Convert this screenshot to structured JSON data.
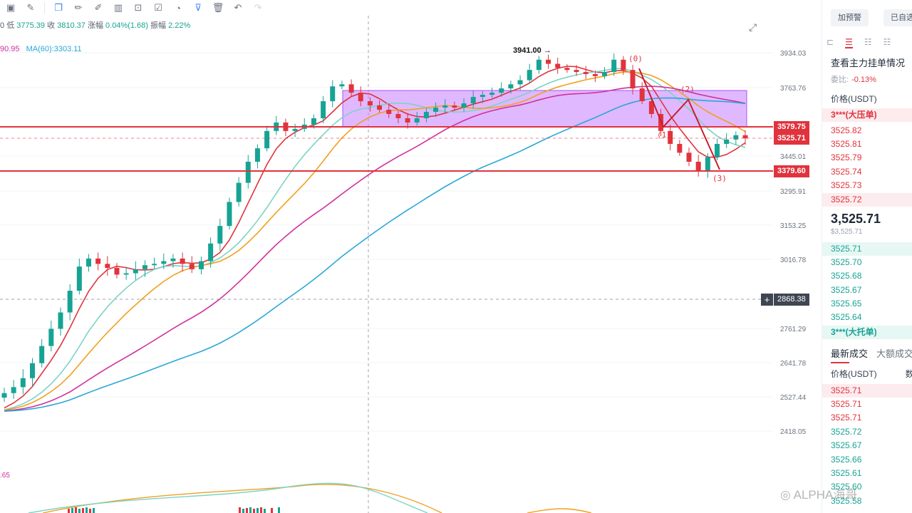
{
  "toolbar": {
    "icons": [
      "layers-icon",
      "brush-icon",
      "copy-icon",
      "pencil-icon",
      "paint-icon",
      "pattern-icon",
      "lock-icon",
      "note-icon",
      "measure-icon",
      "filter-icon",
      "trash-icon",
      "undo-icon",
      "redo-icon"
    ]
  },
  "ohlc": {
    "prefix": "0",
    "low_label": "低",
    "low": "3775.39",
    "close_label": "收",
    "close": "3810.37",
    "change_label": "涨幅",
    "change": "0.04%(1.68)",
    "amp_label": "振幅",
    "amp": "2.22%"
  },
  "ma": {
    "ma1_text": "90.95",
    "ma2_text": "MA(60):3303.11"
  },
  "sub_indicator_value": ".65",
  "y_axis_labels": [
    "3934.03",
    "3763.76",
    "3445.01",
    "3295.91",
    "3153.25",
    "3016.78",
    "2761.29",
    "2641.78",
    "2527.44",
    "2418.05"
  ],
  "price_tags": {
    "upper": "3579.75",
    "current": "3525.71",
    "lower": "3379.60",
    "crosshair": "2868.38"
  },
  "annotations": {
    "high": "3941.00",
    "wave0": "(0)",
    "wave1": "(1)",
    "wave2": "(2)",
    "wave3": "(3)"
  },
  "panel": {
    "btn_alert": "加预警",
    "btn_selected": "已自选",
    "title": "查看主力挂单情况",
    "ratio_label": "委比:",
    "ratio_value": "-0.13%",
    "price_header": "价格(USDT)",
    "ask_big": "3***(大压单)",
    "asks": [
      "3525.82",
      "3525.81",
      "3525.79",
      "3525.74",
      "3525.73",
      "3525.72"
    ],
    "last_price": "3,525.71",
    "last_price_sub": "$3,525.71",
    "bids": [
      "3525.71",
      "3525.70",
      "3525.68",
      "3525.67",
      "3525.65",
      "3525.64"
    ],
    "bid_big": "3***(大托单)",
    "tab_latest": "最新成交",
    "tab_large": "大额成交",
    "trades_header_price": "价格(USDT)",
    "trades_header_qty": "数",
    "trades": [
      {
        "price": "3525.71",
        "side": "sell"
      },
      {
        "price": "3525.71",
        "side": "sell"
      },
      {
        "price": "3525.71",
        "side": "sell"
      },
      {
        "price": "3525.72",
        "side": "buy"
      },
      {
        "price": "3525.67",
        "side": "buy"
      },
      {
        "price": "3525.66",
        "side": "buy"
      },
      {
        "price": "3525.61",
        "side": "buy"
      },
      {
        "price": "3525.60",
        "side": "buy"
      },
      {
        "price": "3525.58",
        "side": "buy"
      }
    ]
  },
  "watermark": "ALPHA海哥",
  "colors": {
    "up": "#16a394",
    "down": "#e0333d",
    "ma_short": "#e0333d",
    "ma_mid": "#f0a020",
    "ma_long": "#d0309d",
    "ma_60": "#2aa7d8",
    "box": "#c77dff"
  },
  "chart_data": {
    "type": "candlestick",
    "y_ticks": [
      3934.03,
      3763.76,
      3445.01,
      3295.91,
      3153.25,
      3016.78,
      2761.29,
      2641.78,
      2527.44,
      2418.05
    ],
    "levels": [
      3579.75,
      3525.71,
      3379.6
    ],
    "zone": [
      3579.75,
      3763.76
    ],
    "high": 3941.0,
    "closes": [
      2540,
      2560,
      2590,
      2640,
      2700,
      2760,
      2820,
      2900,
      2990,
      3020,
      3000,
      2985,
      2960,
      2965,
      2980,
      2995,
      3000,
      3010,
      3020,
      3000,
      2980,
      3010,
      3080,
      3150,
      3250,
      3330,
      3420,
      3480,
      3560,
      3600,
      3560,
      3570,
      3590,
      3620,
      3700,
      3770,
      3780,
      3740,
      3700,
      3680,
      3660,
      3640,
      3620,
      3600,
      3620,
      3650,
      3670,
      3680,
      3670,
      3690,
      3720,
      3730,
      3740,
      3760,
      3780,
      3800,
      3850,
      3900,
      3880,
      3860,
      3850,
      3840,
      3830,
      3820,
      3840,
      3900,
      3850,
      3760,
      3700,
      3640,
      3560,
      3500,
      3460,
      3420,
      3380,
      3440,
      3500,
      3520,
      3540,
      3525
    ]
  }
}
